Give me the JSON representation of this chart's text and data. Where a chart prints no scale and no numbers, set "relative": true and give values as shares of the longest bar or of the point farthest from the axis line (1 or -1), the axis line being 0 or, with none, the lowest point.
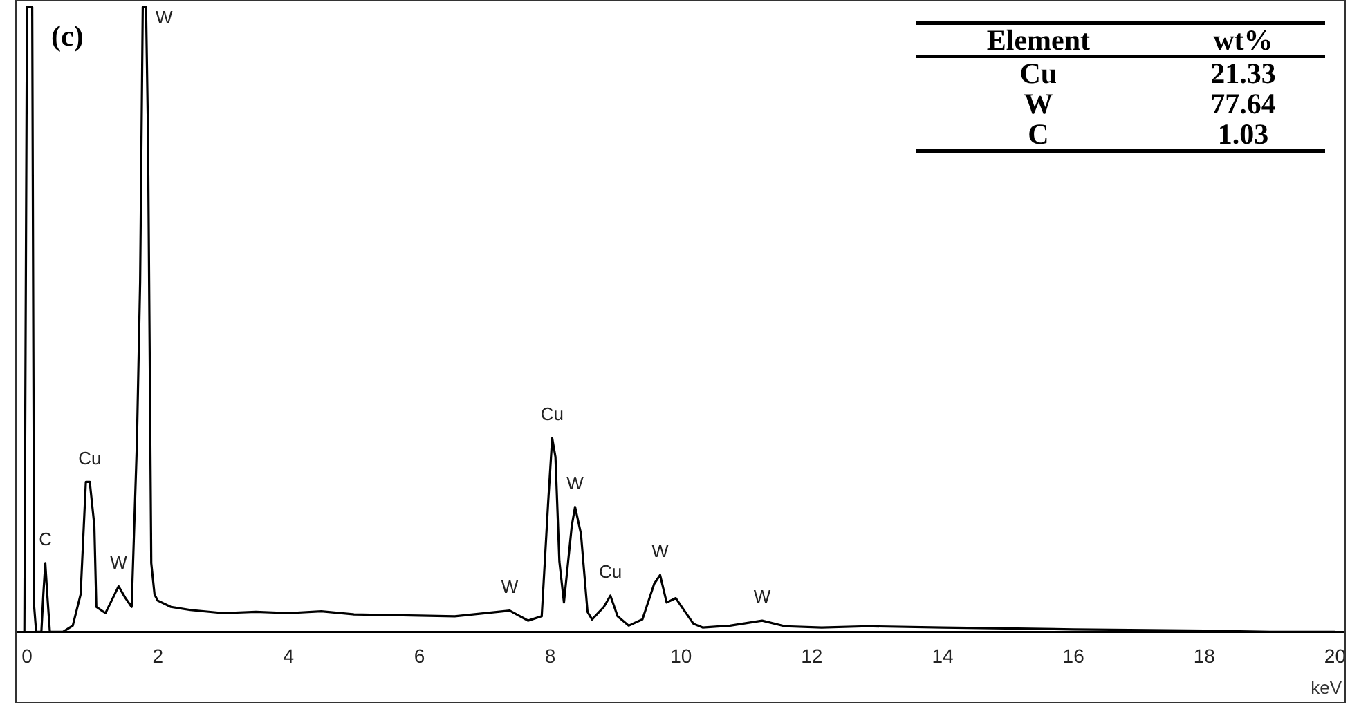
{
  "chart_data": {
    "type": "line",
    "title": "(c)",
    "xlabel": "keV",
    "relative": true,
    "xlim": [
      -0.18,
      20.12
    ],
    "xticks": [
      0,
      2,
      4,
      6,
      8,
      10,
      12,
      14,
      16,
      18,
      20
    ],
    "grid": false,
    "legend": false,
    "marker": "none",
    "line_style": "solid",
    "tick_labels": "x",
    "series": [
      {
        "color": "#000000",
        "x": [
          -0.04,
          -0.03,
          0.0,
          0.08,
          0.11,
          0.14,
          0.22,
          0.25,
          0.28,
          0.31,
          0.35,
          0.55,
          0.7,
          0.82,
          0.9,
          0.96,
          1.03,
          1.06,
          1.2,
          1.34,
          1.4,
          1.5,
          1.6,
          1.68,
          1.73,
          1.77,
          1.82,
          1.85,
          1.9,
          1.95,
          2.0,
          2.2,
          2.5,
          3.0,
          3.5,
          4.0,
          4.5,
          5.0,
          5.5,
          6.0,
          6.54,
          7.38,
          7.66,
          7.87,
          7.97,
          8.03,
          8.08,
          8.14,
          8.21,
          8.33,
          8.38,
          8.47,
          8.57,
          8.64,
          8.82,
          8.92,
          9.03,
          9.2,
          9.41,
          9.59,
          9.68,
          9.78,
          9.92,
          10.05,
          10.19,
          10.33,
          10.75,
          11.24,
          11.59,
          12.15,
          12.85,
          14.0,
          16.0,
          18.0,
          19.0,
          20.0
        ],
        "values": [
          0,
          0.25,
          1,
          1,
          0.04,
          0,
          0,
          0.06,
          0.11,
          0.06,
          0,
          0,
          0.01,
          0.06,
          0.24,
          0.24,
          0.17,
          0.04,
          0.03,
          0.06,
          0.073,
          0.055,
          0.04,
          0.3,
          0.56,
          1,
          1,
          0.8,
          0.11,
          0.06,
          0.05,
          0.04,
          0.035,
          0.03,
          0.032,
          0.03,
          0.033,
          0.028,
          0.027,
          0.026,
          0.025,
          0.034,
          0.018,
          0.025,
          0.21,
          0.31,
          0.28,
          0.113,
          0.047,
          0.17,
          0.2,
          0.157,
          0.032,
          0.02,
          0.04,
          0.058,
          0.025,
          0.01,
          0.02,
          0.077,
          0.091,
          0.047,
          0.054,
          0.034,
          0.013,
          0.007,
          0.01,
          0.018,
          0.009,
          0.007,
          0.009,
          0.007,
          0.004,
          0.002,
          0,
          0
        ]
      }
    ],
    "annotations": [
      {
        "text": "C",
        "x": 0.28,
        "y": 0.11
      },
      {
        "text": "Cu",
        "x": 0.96,
        "y": 0.24
      },
      {
        "text": "W",
        "x": 1.4,
        "y": 0.073
      },
      {
        "text": "W",
        "x": 1.8,
        "y": 1
      },
      {
        "text": "W",
        "x": 7.38,
        "y": 0.034
      },
      {
        "text": "Cu",
        "x": 8.03,
        "y": 0.31
      },
      {
        "text": "W",
        "x": 8.38,
        "y": 0.2
      },
      {
        "text": "Cu",
        "x": 8.92,
        "y": 0.058
      },
      {
        "text": "W",
        "x": 9.68,
        "y": 0.091
      },
      {
        "text": "W",
        "x": 11.24,
        "y": 0.018
      },
      "Element",
      "wt%",
      "Cu",
      "21.33",
      "W",
      "77.64",
      "C",
      "1.03"
    ]
  }
}
